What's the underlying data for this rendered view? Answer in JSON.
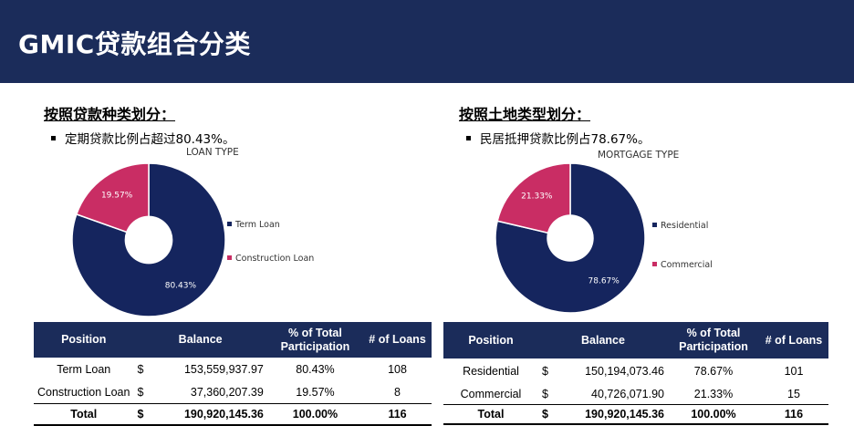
{
  "page": {
    "title": "GMIC贷款组合分类"
  },
  "colors": {
    "navy": "#1b2c5a",
    "pie_navy": "#15255e",
    "pie_pink": "#c92d64"
  },
  "left": {
    "section_title": "按照贷款种类划分：",
    "bullet": "定期贷款比例占超过80.43%。",
    "chart_title": "LOAN TYPE",
    "legend": [
      "Term Loan",
      "Construction Loan"
    ],
    "table": {
      "headers": [
        "Position",
        "Balance",
        "% of Total Participation",
        "# of Loans"
      ],
      "rows": [
        {
          "position": "Term Loan",
          "cur": "$",
          "balance": "153,559,937.97",
          "pct": "80.43%",
          "loans": "108"
        },
        {
          "position": "Construction Loan",
          "cur": "$",
          "balance": "37,360,207.39",
          "pct": "19.57%",
          "loans": "8"
        }
      ],
      "total": {
        "position": "Total",
        "cur": "$",
        "balance": "190,920,145.36",
        "pct": "100.00%",
        "loans": "116"
      }
    }
  },
  "right": {
    "section_title": "按照土地类型划分：",
    "bullet": "民居抵押贷款比例占78.67%。",
    "chart_title": "MORTGAGE TYPE",
    "legend": [
      "Residential",
      "Commercial"
    ],
    "table": {
      "headers": [
        "Position",
        "Balance",
        "% of Total Participation",
        "# of Loans"
      ],
      "rows": [
        {
          "position": "Residential",
          "cur": "$",
          "balance": "150,194,073.46",
          "pct": "78.67%",
          "loans": "101"
        },
        {
          "position": "Commercial",
          "cur": "$",
          "balance": "40,726,071.90",
          "pct": "21.33%",
          "loans": "15"
        }
      ],
      "total": {
        "position": "Total",
        "cur": "$",
        "balance": "190,920,145.36",
        "pct": "100.00%",
        "loans": "116"
      }
    }
  },
  "chart_data": [
    {
      "type": "pie",
      "title": "LOAN TYPE",
      "categories": [
        "Term Loan",
        "Construction Loan"
      ],
      "values": [
        80.43,
        19.57
      ],
      "labels": [
        "80.43%",
        "19.57%"
      ],
      "colors": [
        "#15255e",
        "#c92d64"
      ],
      "legend_position": "right",
      "donut": true
    },
    {
      "type": "pie",
      "title": "MORTGAGE TYPE",
      "categories": [
        "Residential",
        "Commercial"
      ],
      "values": [
        78.67,
        21.33
      ],
      "labels": [
        "78.67%",
        "21.33%"
      ],
      "colors": [
        "#15255e",
        "#c92d64"
      ],
      "legend_position": "right",
      "donut": true
    }
  ]
}
